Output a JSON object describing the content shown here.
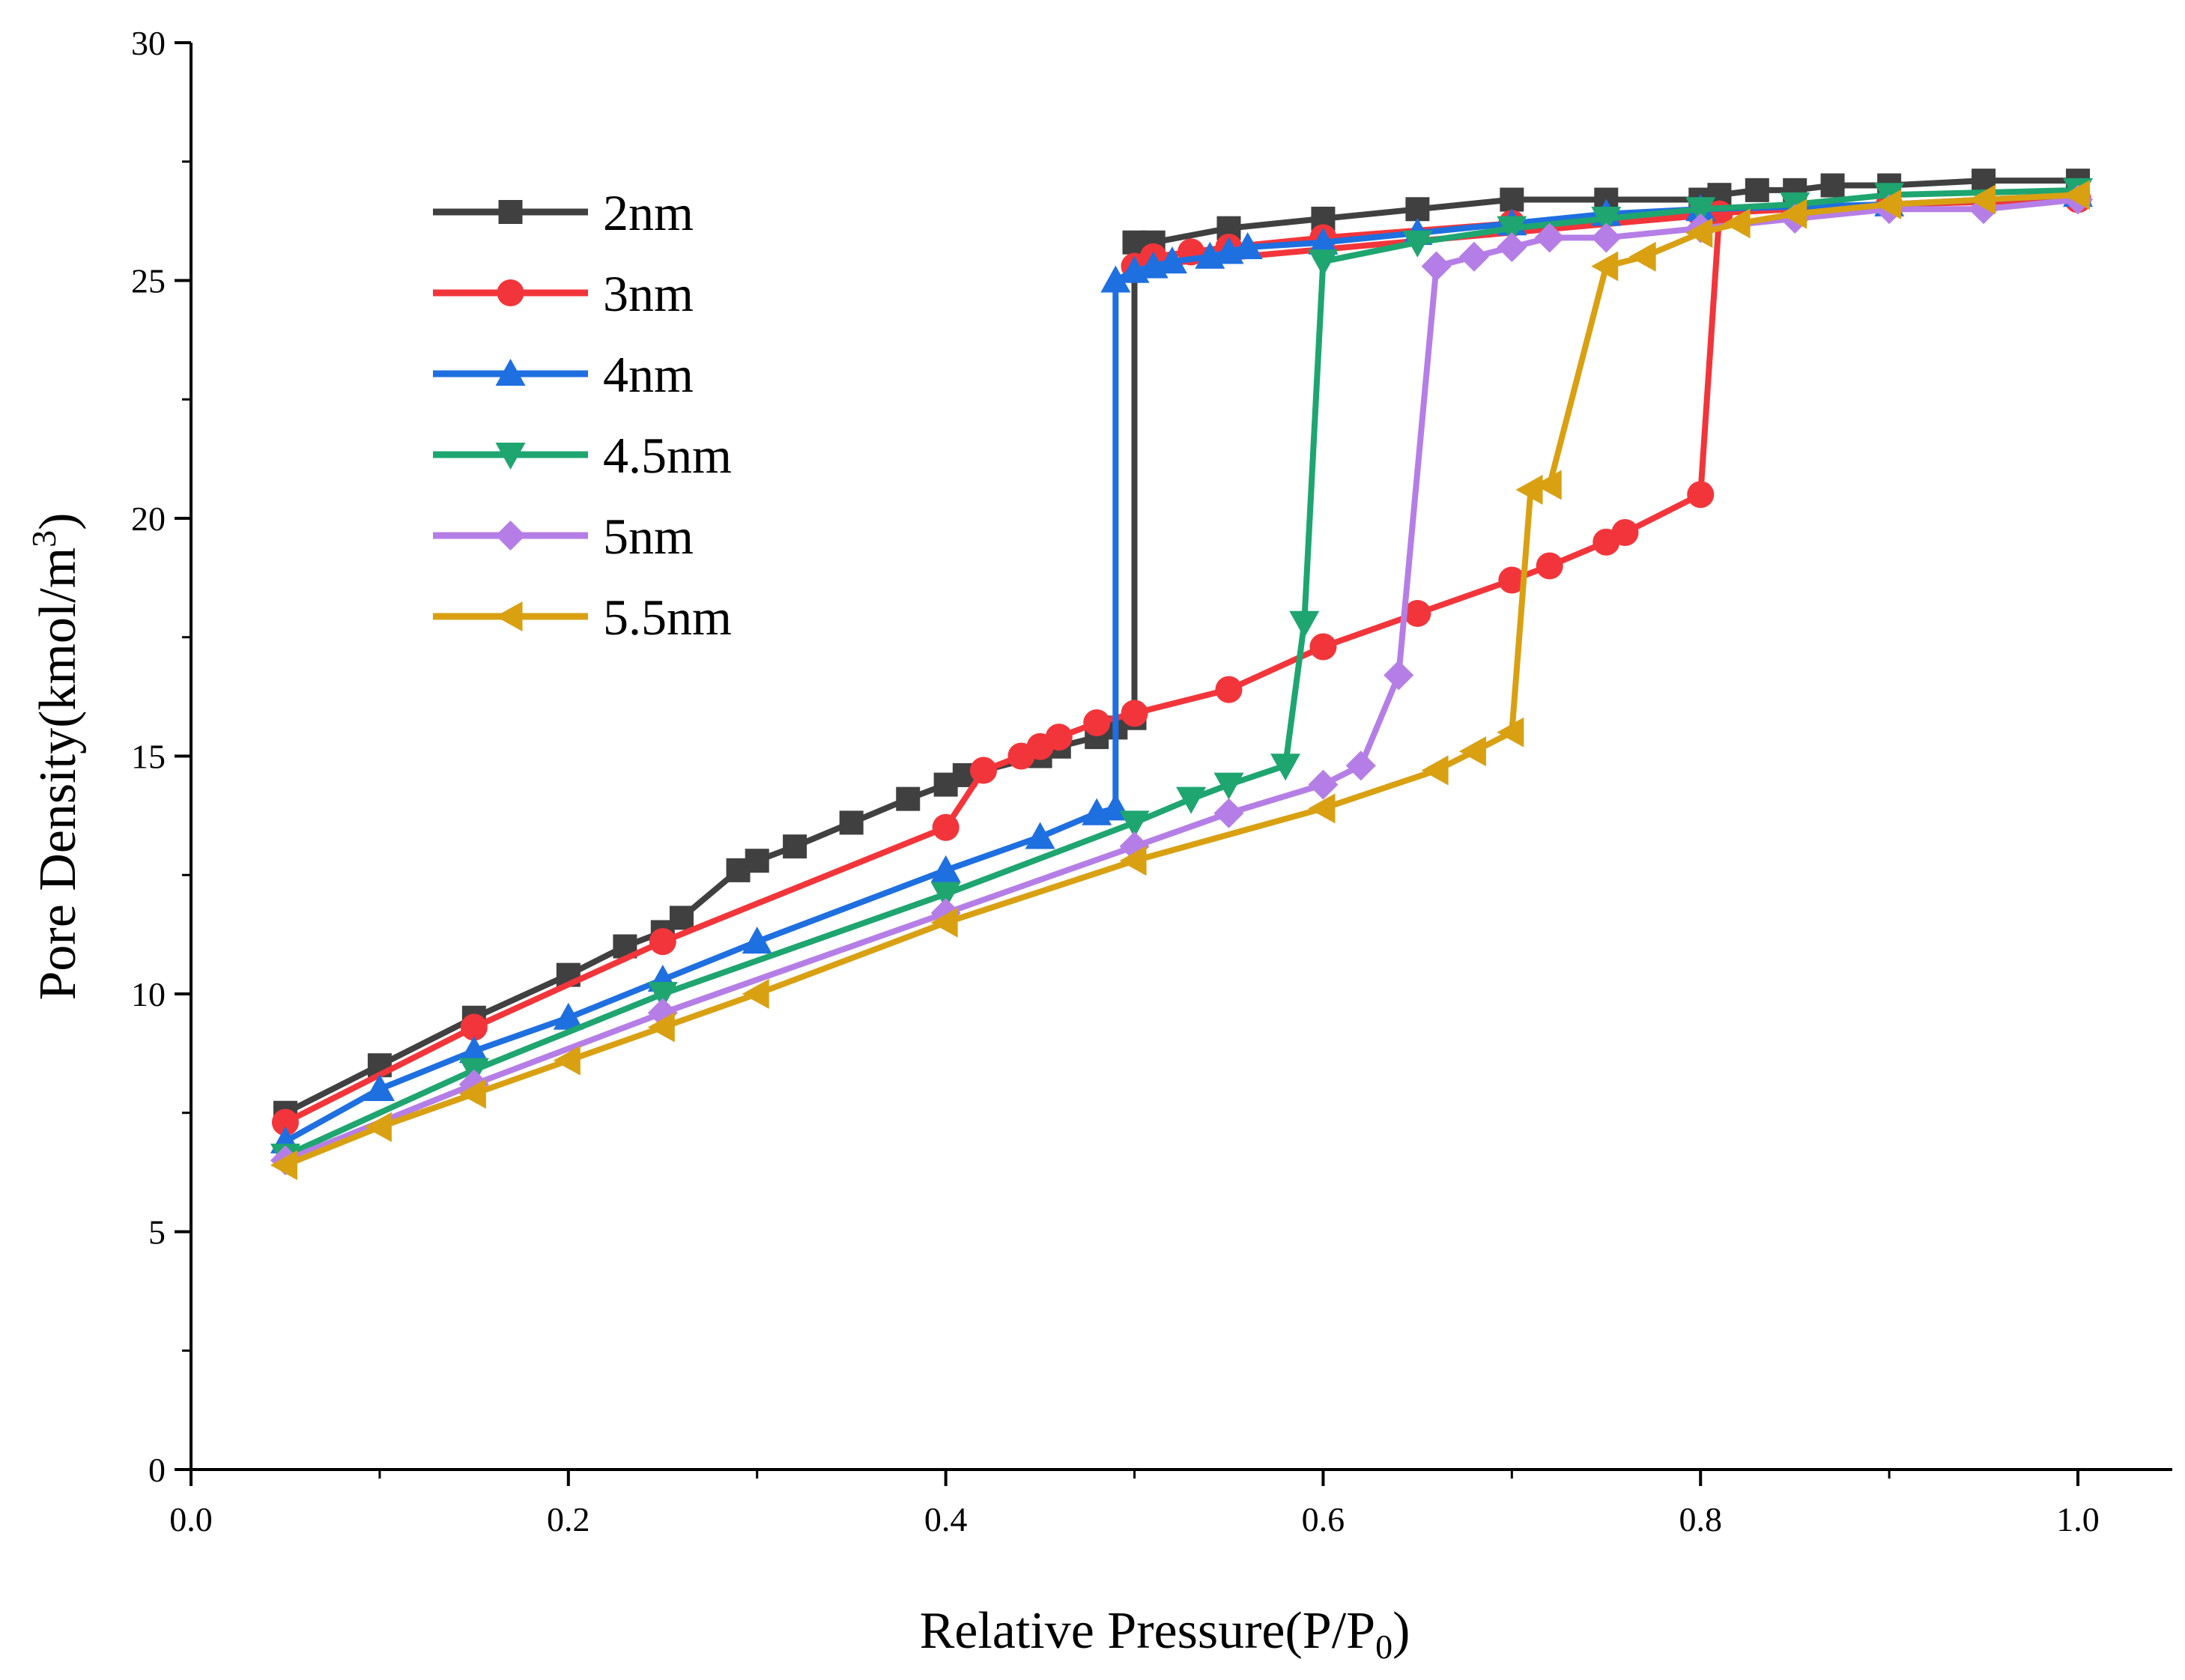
{
  "chart_data": {
    "type": "line",
    "title": "",
    "xlabel": "Relative Pressure(P/P",
    "xlabel_sub": "0",
    "xlabel_end": ")",
    "ylabel": "Pore Density(kmol/m",
    "ylabel_sup": "3",
    "ylabel_end": ")",
    "xlim": [
      0.0,
      1.05
    ],
    "ylim": [
      0,
      30
    ],
    "x_ticks": [
      0.0,
      0.2,
      0.4,
      0.6,
      0.8,
      1.0
    ],
    "x_tick_labels": [
      "0.0",
      "0.2",
      "0.4",
      "0.6",
      "0.8",
      "1.0"
    ],
    "y_ticks": [
      0,
      5,
      10,
      15,
      20,
      25,
      30
    ],
    "y_tick_labels": [
      "0",
      "5",
      "10",
      "15",
      "20",
      "25",
      "30"
    ],
    "grid": false,
    "legend_position": "top-left",
    "series": [
      {
        "name": "2nm",
        "color": "#404040",
        "marker": "square",
        "x": [
          0.05,
          0.1,
          0.15,
          0.2,
          0.23,
          0.25,
          0.26,
          0.29,
          0.3,
          0.32,
          0.35,
          0.38,
          0.4,
          0.41,
          0.45,
          0.46,
          0.48,
          0.49,
          0.5,
          0.5,
          0.51,
          0.55,
          0.6,
          0.65,
          0.7,
          0.75,
          0.8,
          0.81,
          0.83,
          0.85,
          0.87,
          0.9,
          0.95,
          1.0
        ],
        "y": [
          7.5,
          8.5,
          9.5,
          10.4,
          11.0,
          11.3,
          11.6,
          12.6,
          12.8,
          13.1,
          13.6,
          14.1,
          14.4,
          14.6,
          15.0,
          15.2,
          15.4,
          15.6,
          15.8,
          25.8,
          25.8,
          26.1,
          26.3,
          26.5,
          26.7,
          26.7,
          26.7,
          26.8,
          26.9,
          26.9,
          27.0,
          27.0,
          27.1,
          27.1
        ]
      },
      {
        "name": "3nm",
        "color": "#f2353a",
        "marker": "circle",
        "x": [
          0.05,
          0.15,
          0.25,
          0.4,
          0.42,
          0.44,
          0.45,
          0.46,
          0.48,
          0.5,
          0.55,
          0.6,
          0.65,
          0.7,
          0.72,
          0.75,
          0.76,
          0.8,
          0.81,
          0.5,
          0.51,
          0.53,
          0.55,
          0.6,
          0.7,
          0.8,
          0.9,
          1.0
        ],
        "y": [
          7.3,
          9.3,
          11.1,
          13.5,
          14.7,
          15.0,
          15.2,
          15.4,
          15.7,
          15.9,
          16.4,
          17.3,
          18.0,
          18.7,
          19.0,
          19.5,
          19.7,
          20.5,
          26.4,
          25.3,
          25.5,
          25.6,
          25.7,
          25.9,
          26.2,
          26.4,
          26.6,
          26.7
        ]
      },
      {
        "name": "4nm",
        "color": "#1e6fe0",
        "marker": "triangle-up",
        "x": [
          0.05,
          0.1,
          0.15,
          0.2,
          0.25,
          0.3,
          0.4,
          0.45,
          0.48,
          0.49,
          0.49,
          0.5,
          0.51,
          0.52,
          0.54,
          0.55,
          0.56,
          0.6,
          0.65,
          0.7,
          0.75,
          0.8,
          0.9,
          1.0
        ],
        "y": [
          6.9,
          8.0,
          8.8,
          9.5,
          10.3,
          11.1,
          12.6,
          13.3,
          13.8,
          13.9,
          25.0,
          25.2,
          25.3,
          25.4,
          25.5,
          25.6,
          25.7,
          25.8,
          26.0,
          26.2,
          26.4,
          26.5,
          26.6,
          26.8
        ]
      },
      {
        "name": "4.5nm",
        "color": "#1ea570",
        "marker": "triangle-down",
        "x": [
          0.05,
          0.15,
          0.25,
          0.4,
          0.5,
          0.53,
          0.55,
          0.58,
          0.59,
          0.6,
          0.65,
          0.7,
          0.75,
          0.8,
          0.85,
          0.9,
          1.0
        ],
        "y": [
          6.6,
          8.4,
          10.0,
          12.1,
          13.6,
          14.1,
          14.4,
          14.8,
          17.8,
          25.4,
          25.8,
          26.1,
          26.3,
          26.5,
          26.6,
          26.8,
          26.9
        ]
      },
      {
        "name": "5nm",
        "color": "#b57ee6",
        "marker": "diamond",
        "x": [
          0.05,
          0.15,
          0.25,
          0.4,
          0.5,
          0.55,
          0.6,
          0.62,
          0.64,
          0.66,
          0.68,
          0.7,
          0.72,
          0.75,
          0.8,
          0.85,
          0.9,
          0.95,
          1.0
        ],
        "y": [
          6.5,
          8.1,
          9.6,
          11.7,
          13.1,
          13.8,
          14.4,
          14.8,
          16.7,
          25.3,
          25.5,
          25.7,
          25.9,
          25.9,
          26.1,
          26.3,
          26.5,
          26.5,
          26.7
        ]
      },
      {
        "name": "5.5nm",
        "color": "#d9a012",
        "marker": "triangle-left",
        "x": [
          0.05,
          0.1,
          0.15,
          0.2,
          0.25,
          0.3,
          0.4,
          0.5,
          0.6,
          0.66,
          0.68,
          0.7,
          0.71,
          0.72,
          0.75,
          0.77,
          0.8,
          0.82,
          0.85,
          0.9,
          0.95,
          1.0
        ],
        "y": [
          6.4,
          7.2,
          7.9,
          8.6,
          9.3,
          10.0,
          11.5,
          12.8,
          13.9,
          14.7,
          15.1,
          15.5,
          20.6,
          20.7,
          25.3,
          25.5,
          26.0,
          26.2,
          26.4,
          26.6,
          26.7,
          26.8
        ]
      }
    ]
  }
}
